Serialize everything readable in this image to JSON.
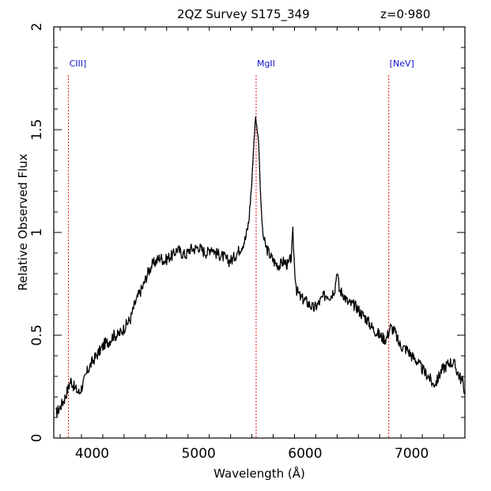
{
  "chart_data": {
    "type": "line",
    "title": "2QZ Survey S175_349",
    "redshift_label": "z=0·980",
    "xlabel": "Wavelength (Å)",
    "ylabel": "Relative Observed Flux",
    "xlim": [
      3640,
      7500
    ],
    "ylim": [
      0,
      2
    ],
    "x_ticks": [
      4000,
      5000,
      6000,
      7000
    ],
    "x_tick_labels": [
      "4000",
      "5000",
      "6000",
      "7000"
    ],
    "y_ticks": [
      0,
      0.5,
      1,
      1.5,
      2
    ],
    "y_tick_labels": [
      "0",
      "0.5",
      "1",
      "1.5",
      "2"
    ],
    "grid": false,
    "line_color": "#000000",
    "marker_color": "#e01010",
    "label_color": "#1010d0",
    "emission_lines": [
      {
        "label": "CIII]",
        "wavelength": 3778
      },
      {
        "label": "MgII",
        "wavelength": 5540
      },
      {
        "label": "[NeV]",
        "wavelength": 6785
      }
    ],
    "series": [
      {
        "x": [
          3660,
          3700,
          3740,
          3780,
          3800,
          3840,
          3880,
          3920,
          3960,
          4000,
          4040,
          4080,
          4120,
          4160,
          4200,
          4240,
          4280,
          4320,
          4360,
          4400,
          4440,
          4480,
          4520,
          4560,
          4600,
          4640,
          4680,
          4720,
          4760,
          4800,
          4840,
          4880,
          4920,
          4960,
          5000,
          5040,
          5080,
          5120,
          5160,
          5200,
          5240,
          5280,
          5320,
          5360,
          5400,
          5440,
          5470,
          5500,
          5520,
          5535,
          5550,
          5565,
          5580,
          5600,
          5620,
          5640,
          5680,
          5720,
          5760,
          5800,
          5840,
          5870,
          5885,
          5900,
          5920,
          5960,
          6000,
          6040,
          6080,
          6120,
          6160,
          6200,
          6240,
          6280,
          6300,
          6320,
          6360,
          6400,
          6440,
          6480,
          6520,
          6560,
          6600,
          6640,
          6680,
          6720,
          6760,
          6800,
          6840,
          6880,
          6920,
          6960,
          7000,
          7040,
          7080,
          7120,
          7160,
          7200,
          7240,
          7280,
          7320,
          7360,
          7400,
          7440,
          7480,
          7500
        ],
        "y": [
          0.12,
          0.15,
          0.19,
          0.25,
          0.28,
          0.24,
          0.22,
          0.27,
          0.33,
          0.37,
          0.4,
          0.43,
          0.46,
          0.47,
          0.5,
          0.5,
          0.52,
          0.55,
          0.58,
          0.65,
          0.7,
          0.74,
          0.8,
          0.84,
          0.86,
          0.88,
          0.86,
          0.88,
          0.89,
          0.92,
          0.9,
          0.89,
          0.92,
          0.92,
          0.93,
          0.91,
          0.9,
          0.93,
          0.9,
          0.89,
          0.88,
          0.86,
          0.87,
          0.9,
          0.93,
          0.97,
          1.05,
          1.25,
          1.45,
          1.56,
          1.5,
          1.43,
          1.2,
          1.0,
          0.95,
          0.92,
          0.88,
          0.85,
          0.84,
          0.86,
          0.84,
          0.88,
          1.0,
          0.83,
          0.72,
          0.68,
          0.67,
          0.65,
          0.63,
          0.65,
          0.68,
          0.7,
          0.69,
          0.73,
          0.82,
          0.72,
          0.7,
          0.66,
          0.65,
          0.64,
          0.61,
          0.59,
          0.56,
          0.53,
          0.51,
          0.49,
          0.48,
          0.54,
          0.52,
          0.46,
          0.44,
          0.43,
          0.4,
          0.38,
          0.35,
          0.32,
          0.3,
          0.26,
          0.28,
          0.33,
          0.35,
          0.37,
          0.36,
          0.31,
          0.27,
          0.22
        ]
      }
    ]
  }
}
